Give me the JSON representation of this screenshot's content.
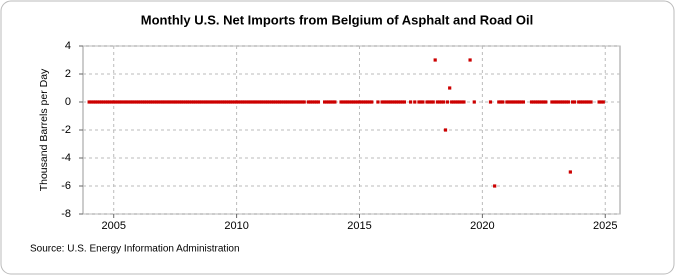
{
  "chart_data": {
    "type": "scatter",
    "title": "Monthly U.S. Net Imports from Belgium of Asphalt and Road Oil",
    "y_label": "Thousand Barrels per Day",
    "source": "Source: U.S. Energy Information Administration",
    "color": "#cc0000",
    "grid": true,
    "xlim": [
      2003.75,
      2025.6
    ],
    "xticks": [
      2005,
      2010,
      2015,
      2020,
      2025
    ],
    "ylim": [
      -8,
      4
    ],
    "yticks": [
      -8,
      -6,
      -4,
      -2,
      0,
      2,
      4
    ],
    "x": [
      2004,
      2004.08,
      2004.17,
      2004.25,
      2004.33,
      2004.42,
      2004.5,
      2004.58,
      2004.67,
      2004.75,
      2004.83,
      2004.92,
      2005,
      2005.08,
      2005.17,
      2005.25,
      2005.33,
      2005.42,
      2005.5,
      2005.58,
      2005.67,
      2005.75,
      2005.83,
      2005.92,
      2006,
      2006.08,
      2006.17,
      2006.25,
      2006.33,
      2006.42,
      2006.5,
      2006.58,
      2006.67,
      2006.75,
      2006.83,
      2006.92,
      2007,
      2007.08,
      2007.17,
      2007.25,
      2007.33,
      2007.42,
      2007.5,
      2007.58,
      2007.67,
      2007.75,
      2007.83,
      2007.92,
      2008,
      2008.08,
      2008.17,
      2008.25,
      2008.33,
      2008.42,
      2008.5,
      2008.58,
      2008.67,
      2008.75,
      2008.83,
      2008.92,
      2009,
      2009.08,
      2009.17,
      2009.25,
      2009.33,
      2009.42,
      2009.5,
      2009.58,
      2009.67,
      2009.75,
      2009.83,
      2009.92,
      2010,
      2010.08,
      2010.17,
      2010.25,
      2010.33,
      2010.42,
      2010.5,
      2010.58,
      2010.67,
      2010.75,
      2010.83,
      2010.92,
      2011,
      2011.08,
      2011.17,
      2011.25,
      2011.33,
      2011.42,
      2011.5,
      2011.58,
      2011.67,
      2011.75,
      2011.83,
      2011.92,
      2012,
      2012.08,
      2012.17,
      2012.25,
      2012.33,
      2012.42,
      2012.5,
      2012.58,
      2012.67,
      2012.75,
      2012.92,
      2013,
      2013.08,
      2013.17,
      2013.25,
      2013.33,
      2013.58,
      2013.67,
      2013.75,
      2013.83,
      2013.92,
      2014,
      2014.25,
      2014.33,
      2014.42,
      2014.5,
      2014.58,
      2014.67,
      2014.75,
      2014.83,
      2014.92,
      2015,
      2015.08,
      2015.17,
      2015.25,
      2015.33,
      2015.42,
      2015.5,
      2015.75,
      2015.92,
      2016,
      2016.08,
      2016.17,
      2016.25,
      2016.33,
      2016.42,
      2016.5,
      2016.58,
      2016.67,
      2016.75,
      2016.83,
      2017.08,
      2017.25,
      2017.42,
      2017.5,
      2017.58,
      2017.75,
      2017.83,
      2017.92,
      2018,
      2018.08,
      2018.17,
      2018.25,
      2018.33,
      2018.42,
      2018.5,
      2018.58,
      2018.67,
      2018.75,
      2018.83,
      2018.92,
      2019,
      2019.08,
      2019.17,
      2019.25,
      2019.5,
      2019.67,
      2020.33,
      2020.5,
      2020.67,
      2020.75,
      2020.83,
      2021,
      2021.08,
      2021.17,
      2021.25,
      2021.33,
      2021.42,
      2021.5,
      2021.58,
      2021.67,
      2022,
      2022.08,
      2022.17,
      2022.25,
      2022.33,
      2022.42,
      2022.5,
      2022.58,
      2022.83,
      2022.92,
      2023,
      2023.08,
      2023.17,
      2023.25,
      2023.33,
      2023.42,
      2023.5,
      2023.58,
      2023.67,
      2023.75,
      2023.92,
      2024,
      2024.08,
      2024.17,
      2024.25,
      2024.33,
      2024.42,
      2024.75,
      2024.83,
      2024.92
    ],
    "values": [
      0,
      0,
      0,
      0,
      0,
      0,
      0,
      0,
      0,
      0,
      0,
      0,
      0,
      0,
      0,
      0,
      0,
      0,
      0,
      0,
      0,
      0,
      0,
      0,
      0,
      0,
      0,
      0,
      0,
      0,
      0,
      0,
      0,
      0,
      0,
      0,
      0,
      0,
      0,
      0,
      0,
      0,
      0,
      0,
      0,
      0,
      0,
      0,
      0,
      0,
      0,
      0,
      0,
      0,
      0,
      0,
      0,
      0,
      0,
      0,
      0,
      0,
      0,
      0,
      0,
      0,
      0,
      0,
      0,
      0,
      0,
      0,
      0,
      0,
      0,
      0,
      0,
      0,
      0,
      0,
      0,
      0,
      0,
      0,
      0,
      0,
      0,
      0,
      0,
      0,
      0,
      0,
      0,
      0,
      0,
      0,
      0,
      0,
      0,
      0,
      0,
      0,
      0,
      0,
      0,
      0,
      0,
      0,
      0,
      0,
      0,
      0,
      0,
      0,
      0,
      0,
      0,
      0,
      0,
      0,
      0,
      0,
      0,
      0,
      0,
      0,
      0,
      0,
      0,
      0,
      0,
      0,
      0,
      0,
      0,
      0,
      0,
      0,
      0,
      0,
      0,
      0,
      0,
      0,
      0,
      0,
      0,
      0,
      0,
      0,
      0,
      0,
      0,
      0,
      0,
      0,
      3,
      0,
      0,
      0,
      0,
      -2,
      0,
      1,
      0,
      0,
      0,
      0,
      0,
      0,
      0,
      3,
      0,
      0,
      -6,
      0,
      0,
      0,
      0,
      0,
      0,
      0,
      0,
      0,
      0,
      0,
      0,
      0,
      0,
      0,
      0,
      0,
      0,
      0,
      0,
      0,
      0,
      0,
      0,
      0,
      0,
      0,
      0,
      0,
      -5,
      0,
      0,
      0,
      0,
      0,
      0,
      0,
      0,
      0,
      0,
      0,
      0
    ]
  }
}
